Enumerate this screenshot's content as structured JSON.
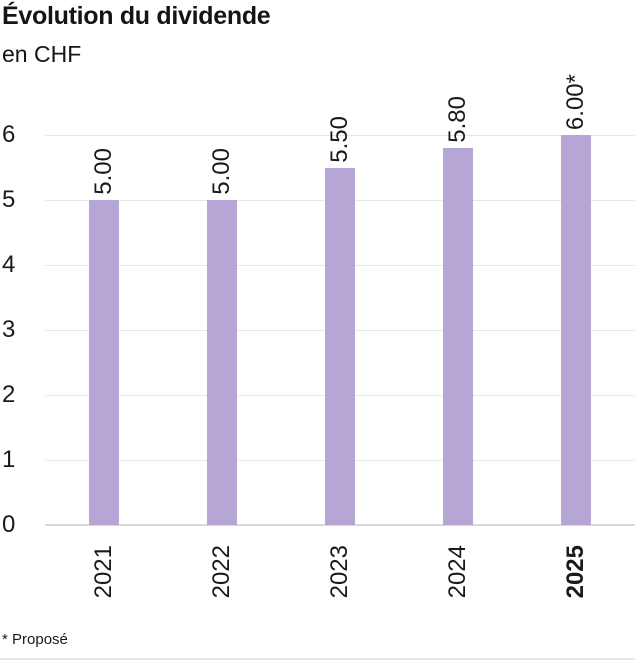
{
  "header": {
    "title": "Évolution du dividende",
    "subtitle": "en CHF"
  },
  "footnote": "* Proposé",
  "colors": {
    "bar_fill": "#b5a6d6",
    "gridline": "#e6e6e6",
    "zero_axis_line": "#d9d9d9",
    "text": "#1a1a1a"
  },
  "chart_data": {
    "type": "bar",
    "title": "Évolution du dividende",
    "subtitle": "en CHF",
    "unit": "CHF",
    "categories": [
      "2021",
      "2022",
      "2023",
      "2024",
      "2025"
    ],
    "values": [
      5.0,
      5.0,
      5.5,
      5.8,
      6.0
    ],
    "bar_labels": [
      "5.00",
      "5.00",
      "5.50",
      "5.80",
      "6.00*"
    ],
    "bold_category": "2025",
    "bar_label_rotation": 90,
    "x_label_rotation": 90,
    "xlabel": "",
    "ylabel": "CHF",
    "ylim": [
      0,
      6
    ],
    "yticks": [
      0,
      1,
      2,
      3,
      4,
      5,
      6
    ],
    "grid": true,
    "legend": false,
    "footnote": "* Proposé",
    "footnote_refers_to": "2025"
  }
}
